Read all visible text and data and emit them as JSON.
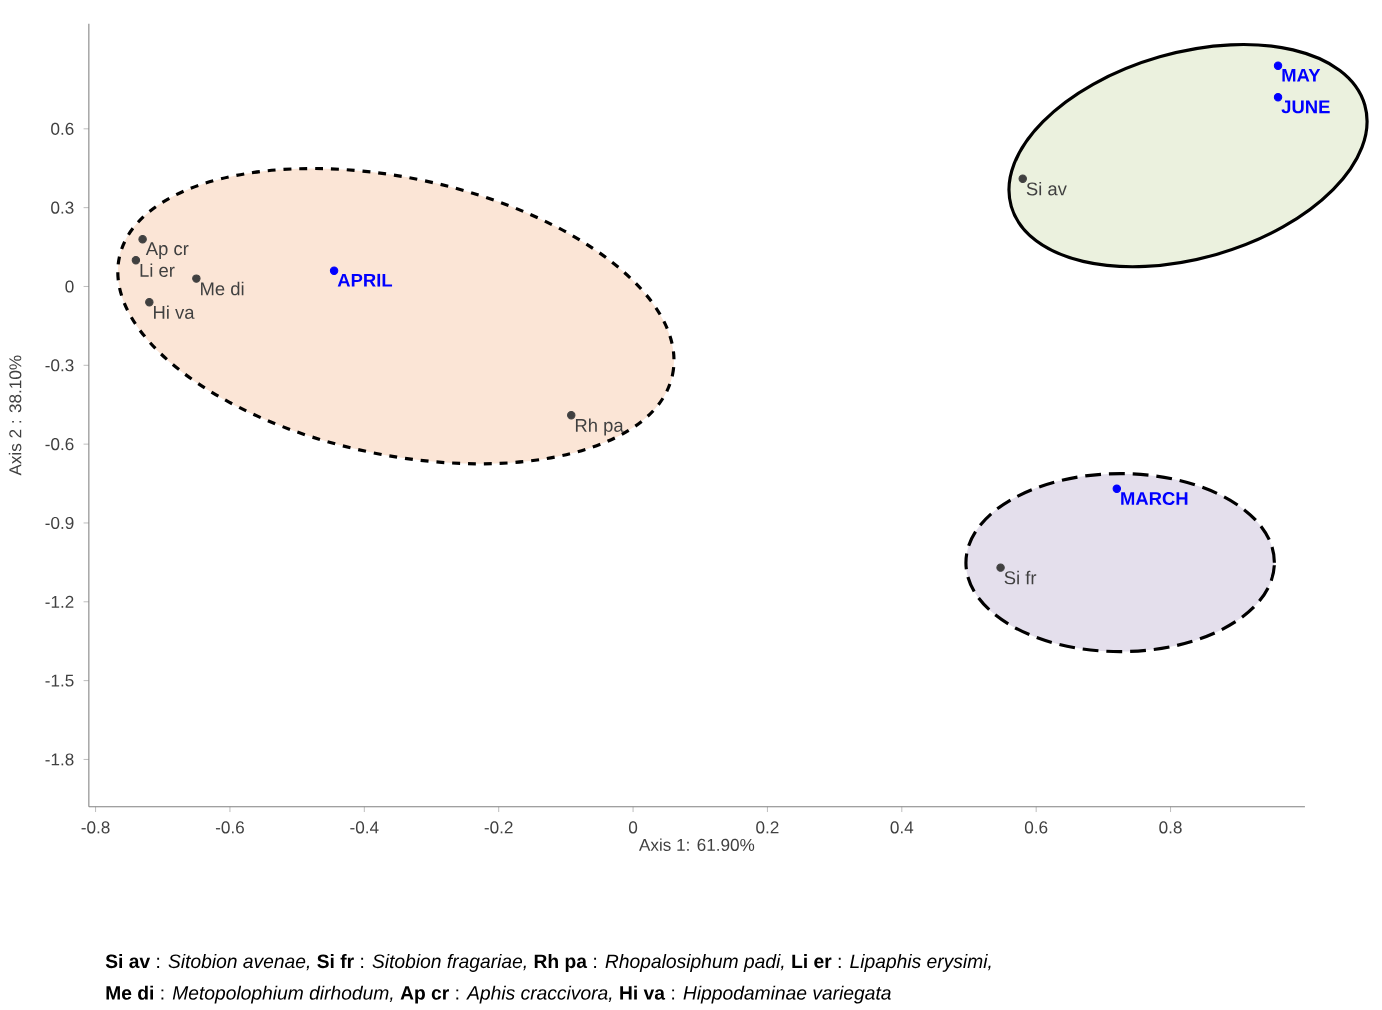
{
  "chart_data": {
    "type": "scatter",
    "xlabel": "Axis 1: 61.90%",
    "ylabel": "Axis 2 : 38.10%",
    "xlim": [
      -0.81,
      1.0
    ],
    "ylim": [
      -1.98,
      1.0
    ],
    "xticks": [
      -0.8,
      -0.6,
      -0.4,
      -0.2,
      0,
      0.2,
      0.4,
      0.6,
      0.8
    ],
    "yticks": [
      -1.8,
      -1.5,
      -1.2,
      -0.9,
      -0.6,
      -0.3,
      0,
      0.3,
      0.6
    ],
    "grid": false,
    "series": [
      {
        "color": "#404040",
        "x": [
          0.58,
          0.547,
          -0.092,
          -0.74,
          -0.65,
          -0.73,
          -0.72
        ],
        "values": [
          0.41,
          -1.07,
          -0.49,
          0.1,
          0.03,
          0.18,
          -0.06
        ],
        "value_labels": [
          "Si av",
          "Si fr",
          "Rh pa",
          "Li er",
          "Me di",
          "Ap cr",
          "Hi va"
        ]
      },
      {
        "color": "#0000ff",
        "x": [
          -0.445,
          0.96,
          0.96,
          0.72
        ],
        "values": [
          0.06,
          0.84,
          0.72,
          -0.77
        ],
        "value_labels": [
          "APRIL",
          "MAY",
          "JUNE",
          "MARCH"
        ]
      }
    ],
    "annotations": [
      "**Si av** : *Sitobion avenae,* **Si fr** : *Sitobion fragariae,* **Rh pa** : *Rhopalosiphum padi,* **Li er** : *Lipaphis erysimi,*",
      "**Me di** : *Metopolophium dirhodum,* **Ap cr** : *Aphis craccivora,* **Hi va** : *Hippodaminae variegata*"
    ]
  }
}
